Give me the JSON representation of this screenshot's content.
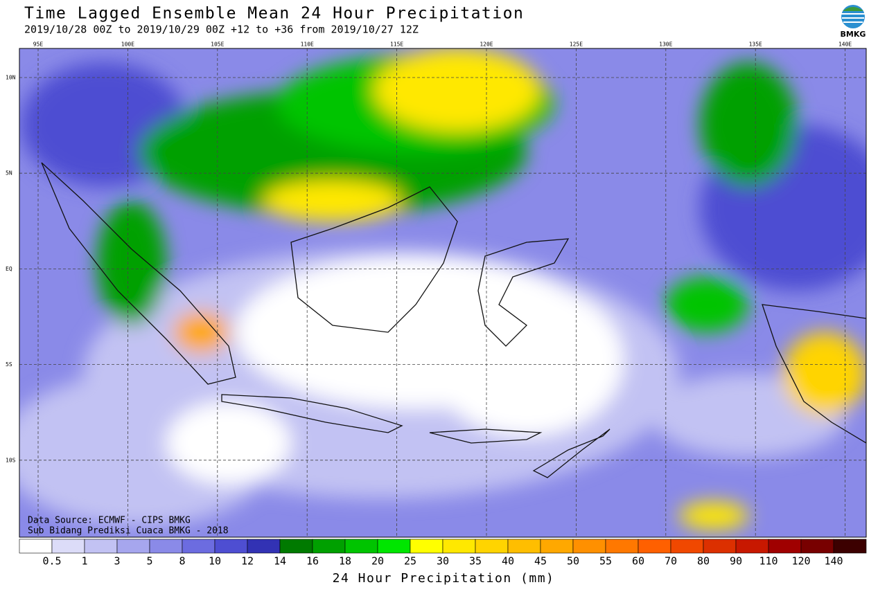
{
  "header": {
    "title": "Time Lagged Ensemble Mean 24 Hour Precipitation",
    "subtitle": "2019/10/28 00Z to 2019/10/29 00Z +12 to +36 from 2019/10/27 12Z",
    "logo": "BMKG"
  },
  "map": {
    "lon_labels": [
      "95E",
      "100E",
      "105E",
      "110E",
      "115E",
      "120E",
      "125E",
      "130E",
      "135E",
      "140E"
    ],
    "lat_labels": [
      "10N",
      "5N",
      "EQ",
      "5S",
      "10S"
    ],
    "notes": [
      "Data Source: ECMWF - CIPS BMKG",
      "Sub Bidang Prediksi Cuaca BMKG - 2018"
    ]
  },
  "colorbar": {
    "labels": [
      "0.5",
      "1",
      "3",
      "5",
      "8",
      "10",
      "12",
      "14",
      "16",
      "18",
      "20",
      "25",
      "30",
      "35",
      "40",
      "45",
      "50",
      "55",
      "60",
      "70",
      "80",
      "90",
      "110",
      "120",
      "140"
    ],
    "colors": [
      "#ffffff",
      "#dcdcf8",
      "#c2c2f3",
      "#a6a6ee",
      "#8a8ae8",
      "#6c6ce0",
      "#4e4ed2",
      "#3232b4",
      "#007a00",
      "#00a000",
      "#00c400",
      "#00e600",
      "#ffff00",
      "#ffe800",
      "#ffd400",
      "#ffbe00",
      "#ffa800",
      "#ff9000",
      "#ff7800",
      "#ff6000",
      "#f04800",
      "#dc3000",
      "#c81800",
      "#a00000",
      "#780000",
      "#3c0000"
    ],
    "title": "24 Hour Precipitation (mm)"
  }
}
